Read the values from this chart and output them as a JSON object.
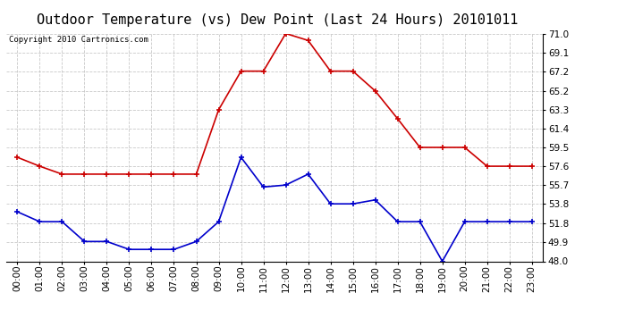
{
  "title": "Outdoor Temperature (vs) Dew Point (Last 24 Hours) 20101011",
  "copyright": "Copyright 2010 Cartronics.com",
  "hours": [
    "00:00",
    "01:00",
    "02:00",
    "03:00",
    "04:00",
    "05:00",
    "06:00",
    "07:00",
    "08:00",
    "09:00",
    "10:00",
    "11:00",
    "12:00",
    "13:00",
    "14:00",
    "15:00",
    "16:00",
    "17:00",
    "18:00",
    "19:00",
    "20:00",
    "21:00",
    "22:00",
    "23:00"
  ],
  "temp": [
    58.5,
    57.6,
    56.8,
    56.8,
    56.8,
    56.8,
    56.8,
    56.8,
    56.8,
    63.3,
    67.2,
    67.2,
    71.0,
    70.3,
    67.2,
    67.2,
    65.2,
    62.4,
    59.5,
    59.5,
    59.5,
    57.6,
    57.6,
    57.6
  ],
  "dew": [
    53.0,
    52.0,
    52.0,
    50.0,
    50.0,
    49.2,
    49.2,
    49.2,
    50.0,
    52.0,
    58.5,
    55.5,
    55.7,
    56.8,
    53.8,
    53.8,
    54.2,
    52.0,
    52.0,
    48.0,
    52.0,
    52.0,
    52.0,
    52.0
  ],
  "temp_color": "#cc0000",
  "dew_color": "#0000cc",
  "bg_color": "#ffffff",
  "grid_color": "#bbbbbb",
  "ylim_min": 48.0,
  "ylim_max": 71.0,
  "yticks": [
    48.0,
    49.9,
    51.8,
    53.8,
    55.7,
    57.6,
    59.5,
    61.4,
    63.3,
    65.2,
    67.2,
    69.1,
    71.0
  ],
  "title_fontsize": 11,
  "copyright_fontsize": 6.5,
  "tick_fontsize": 7.5
}
